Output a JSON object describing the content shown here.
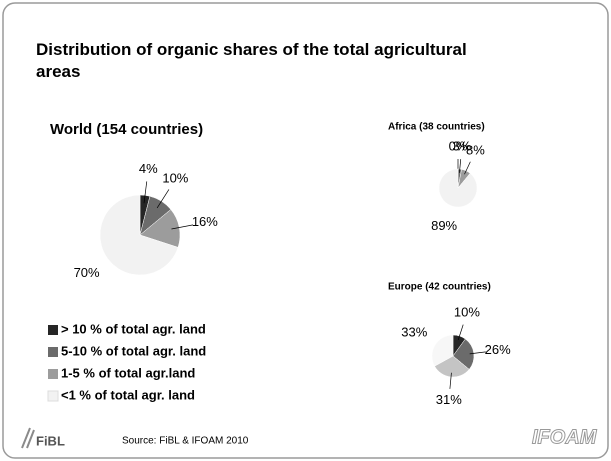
{
  "title_lines": [
    "Distribution of organic shares of the total agricultural",
    "areas"
  ],
  "source": "Source: FiBL  & IFOAM 2010",
  "logo_left": "FiBL",
  "logo_right": "IFOAM",
  "chart_data": [
    {
      "type": "pie",
      "title": "World (154 countries)",
      "categories": [
        "> 10 % of total agr. land",
        "5-10 % of total agr. land",
        "1-5 % of total agr.land",
        "<1 % of total  agr. land"
      ],
      "values": [
        4,
        10,
        16,
        70
      ],
      "value_labels": [
        "4%",
        "10%",
        "16%",
        "70%"
      ],
      "colors": [
        "#262626",
        "#6b6b6b",
        "#9c9c9c",
        "#f2f2f2"
      ]
    },
    {
      "type": "pie",
      "title": "Africa (38 countries)",
      "values": [
        0,
        3,
        8,
        89
      ],
      "value_labels": [
        "0%",
        "3%",
        "8%",
        "89%"
      ],
      "colors": [
        "#262626",
        "#6b6b6b",
        "#9c9c9c",
        "#f2f2f2"
      ]
    },
    {
      "type": "pie",
      "title": "Europe (42 countries)",
      "values": [
        10,
        26,
        31,
        33
      ],
      "value_labels": [
        "10%",
        "26%",
        "31%",
        "33%"
      ],
      "colors": [
        "#262626",
        "#6b6b6b",
        "#c4c4c4",
        "#f7f7f7"
      ]
    }
  ]
}
